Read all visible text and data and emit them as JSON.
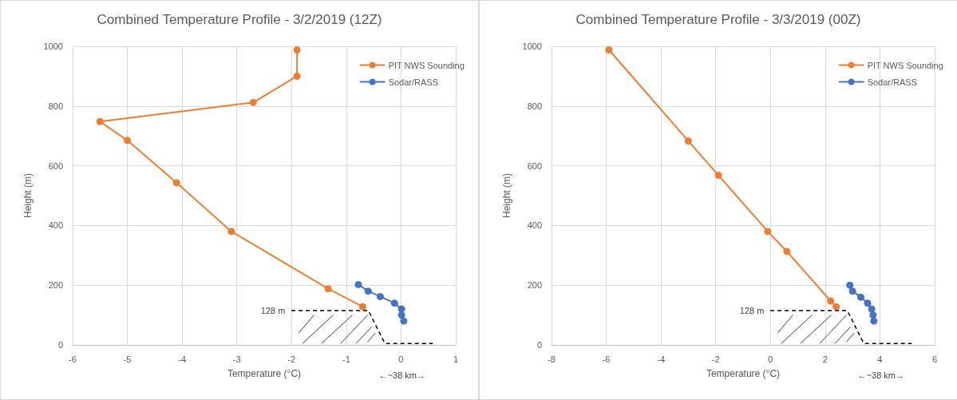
{
  "chart_data": [
    {
      "type": "line",
      "title": "Combined Temperature Profile - 3/2/2019 (12Z)",
      "xlabel": "Temperature (°C)",
      "ylabel": "Height (m)",
      "xlim": [
        -6,
        1
      ],
      "xticks": [
        -6,
        -5,
        -4,
        -3,
        -2,
        -1,
        0,
        1
      ],
      "ylim": [
        0,
        1000
      ],
      "yticks": [
        0,
        200,
        400,
        600,
        800,
        1000
      ],
      "grid": true,
      "legend": "top right",
      "marker": "circle",
      "line_style": "solid",
      "annotations": [
        "128 m",
        "←~38 km→"
      ],
      "series": [
        {
          "name": "PIT NWS Sounding",
          "color": "#ed7d31",
          "x": [
            -1.9,
            -1.9,
            -2.7,
            -5.5,
            -5.0,
            -4.1,
            -3.1,
            -1.33,
            -0.7
          ],
          "values": [
            988,
            900,
            812,
            748,
            685,
            543,
            380,
            188,
            128
          ]
        },
        {
          "name": "Sodar/RASS",
          "color": "#4472c4",
          "x": [
            -0.78,
            -0.6,
            -0.38,
            -0.12,
            0.01,
            0.01,
            0.05
          ],
          "values": [
            202,
            180,
            162,
            140,
            120,
            100,
            80
          ]
        }
      ]
    },
    {
      "type": "line",
      "title": "Combined Temperature Profile - 3/3/2019 (00Z)",
      "xlabel": "Temperature (°C)",
      "ylabel": "Height (m)",
      "xlim": [
        -8,
        6
      ],
      "xticks": [
        -8,
        -6,
        -4,
        -2,
        0,
        2,
        4,
        6
      ],
      "ylim": [
        0,
        1000
      ],
      "yticks": [
        0,
        200,
        400,
        600,
        800,
        1000
      ],
      "grid": true,
      "legend": "top right",
      "marker": "circle",
      "line_style": "solid",
      "annotations": [
        "128 m",
        "←~38 km→"
      ],
      "series": [
        {
          "name": "PIT NWS Sounding",
          "color": "#ed7d31",
          "x": [
            -5.9,
            -3.0,
            -1.9,
            -0.1,
            0.6,
            2.2,
            2.4
          ],
          "values": [
            988,
            683,
            568,
            380,
            313,
            147,
            128
          ]
        },
        {
          "name": "Sodar/RASS",
          "color": "#4472c4",
          "x": [
            2.9,
            3.0,
            3.3,
            3.55,
            3.7,
            3.75,
            3.78
          ],
          "values": [
            200,
            180,
            160,
            140,
            120,
            100,
            80
          ]
        }
      ]
    }
  ]
}
